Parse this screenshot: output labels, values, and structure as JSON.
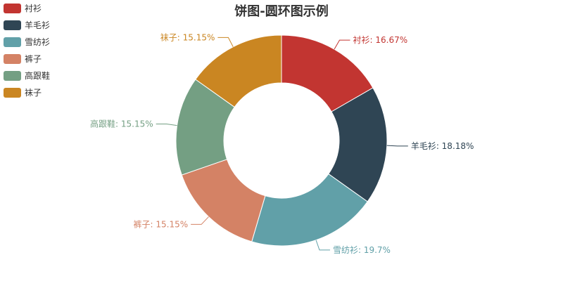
{
  "chart_data": {
    "type": "pie",
    "title": "饼图-圆环图示例",
    "categories": [
      "衬衫",
      "羊毛衫",
      "雪纺衫",
      "裤子",
      "高跟鞋",
      "袜子"
    ],
    "values": [
      11,
      12,
      13,
      10,
      10,
      10
    ],
    "labels": [
      "衬衫: 16.67%",
      "羊毛衫: 18.18%",
      "雪纺衫: 19.7%",
      "裤子: 15.15%",
      "高跟鞋: 15.15%",
      "袜子: 15.15%"
    ],
    "colors": [
      "#c23531",
      "#2f4554",
      "#61a0a8",
      "#d48265",
      "#749f83",
      "#ca8622"
    ],
    "legend_position": "top-left",
    "donut": true
  }
}
